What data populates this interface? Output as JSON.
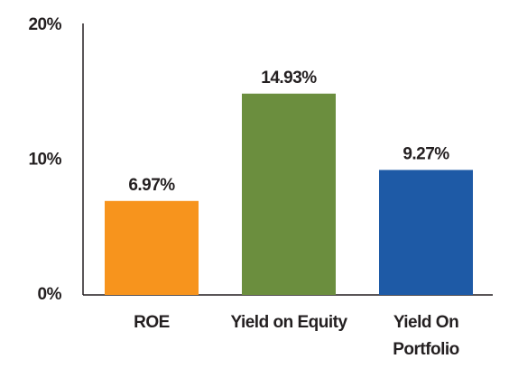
{
  "chart_data": {
    "type": "bar",
    "categories": [
      "ROE",
      "Yield on Equity",
      "Yield On Portfolio"
    ],
    "values": [
      6.97,
      14.93,
      9.27
    ],
    "value_labels": [
      "6.97%",
      "14.93%",
      "9.27%"
    ],
    "colors": [
      "#f7941d",
      "#6b8e3e",
      "#1e5aa6"
    ],
    "ylim": [
      0,
      20
    ],
    "yticks": [
      {
        "value": 0,
        "label": "0%"
      },
      {
        "value": 10,
        "label": "10%"
      },
      {
        "value": 20,
        "label": "20%"
      }
    ],
    "grid": false
  }
}
